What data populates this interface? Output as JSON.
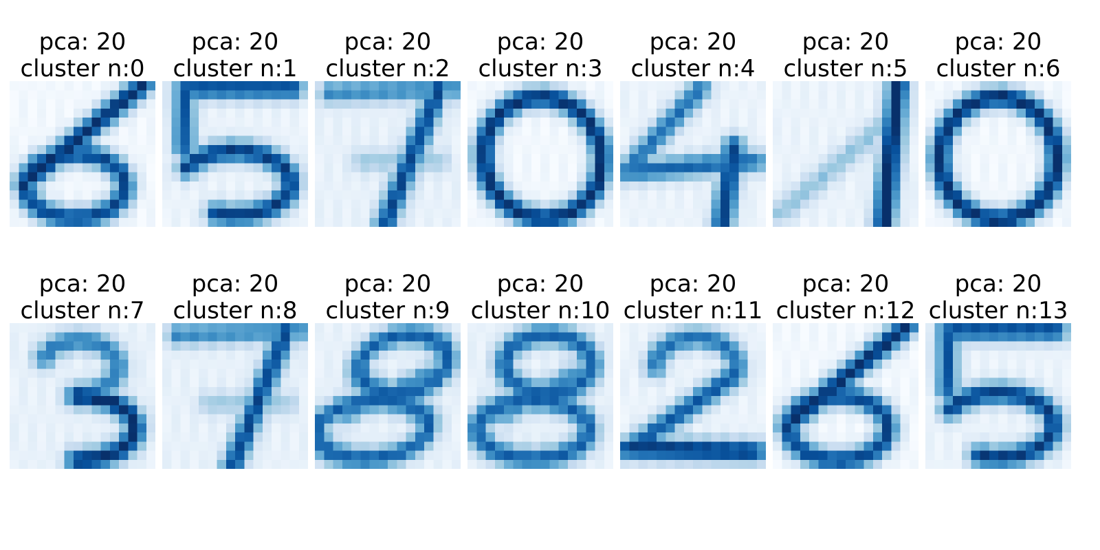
{
  "figure": {
    "colormap": "Blues",
    "colormap_stops": [
      "#f7fbff",
      "#deebf7",
      "#c6dbef",
      "#9ecae1",
      "#6baed6",
      "#4292c6",
      "#2171b5",
      "#08519c",
      "#08306b"
    ],
    "axes_visible": false
  },
  "chart_data": {
    "type": "heatmap",
    "grid_layout": {
      "rows": 2,
      "cols": 7
    },
    "image_size": [
      8,
      8
    ],
    "value_range": [
      0,
      16
    ],
    "panels": [
      {
        "title_line1": "pca: 20",
        "title_line2": "cluster n:0",
        "digit": "6"
      },
      {
        "title_line1": "pca: 20",
        "title_line2": "cluster n:1",
        "digit": "5"
      },
      {
        "title_line1": "pca: 20",
        "title_line2": "cluster n:2",
        "digit": "7"
      },
      {
        "title_line1": "pca: 20",
        "title_line2": "cluster n:3",
        "digit": "0"
      },
      {
        "title_line1": "pca: 20",
        "title_line2": "cluster n:4",
        "digit": "4"
      },
      {
        "title_line1": "pca: 20",
        "title_line2": "cluster n:5",
        "digit": "1"
      },
      {
        "title_line1": "pca: 20",
        "title_line2": "cluster n:6",
        "digit": "0"
      },
      {
        "title_line1": "pca: 20",
        "title_line2": "cluster n:7",
        "digit": "3"
      },
      {
        "title_line1": "pca: 20",
        "title_line2": "cluster n:8",
        "digit": "7"
      },
      {
        "title_line1": "pca: 20",
        "title_line2": "cluster n:9",
        "digit": "8"
      },
      {
        "title_line1": "pca: 20",
        "title_line2": "cluster n:10",
        "digit": "8"
      },
      {
        "title_line1": "pca: 20",
        "title_line2": "cluster n:11",
        "digit": "2"
      },
      {
        "title_line1": "pca: 20",
        "title_line2": "cluster n:12",
        "digit": "6"
      },
      {
        "title_line1": "pca: 20",
        "title_line2": "cluster n:13",
        "digit": "5"
      }
    ]
  }
}
